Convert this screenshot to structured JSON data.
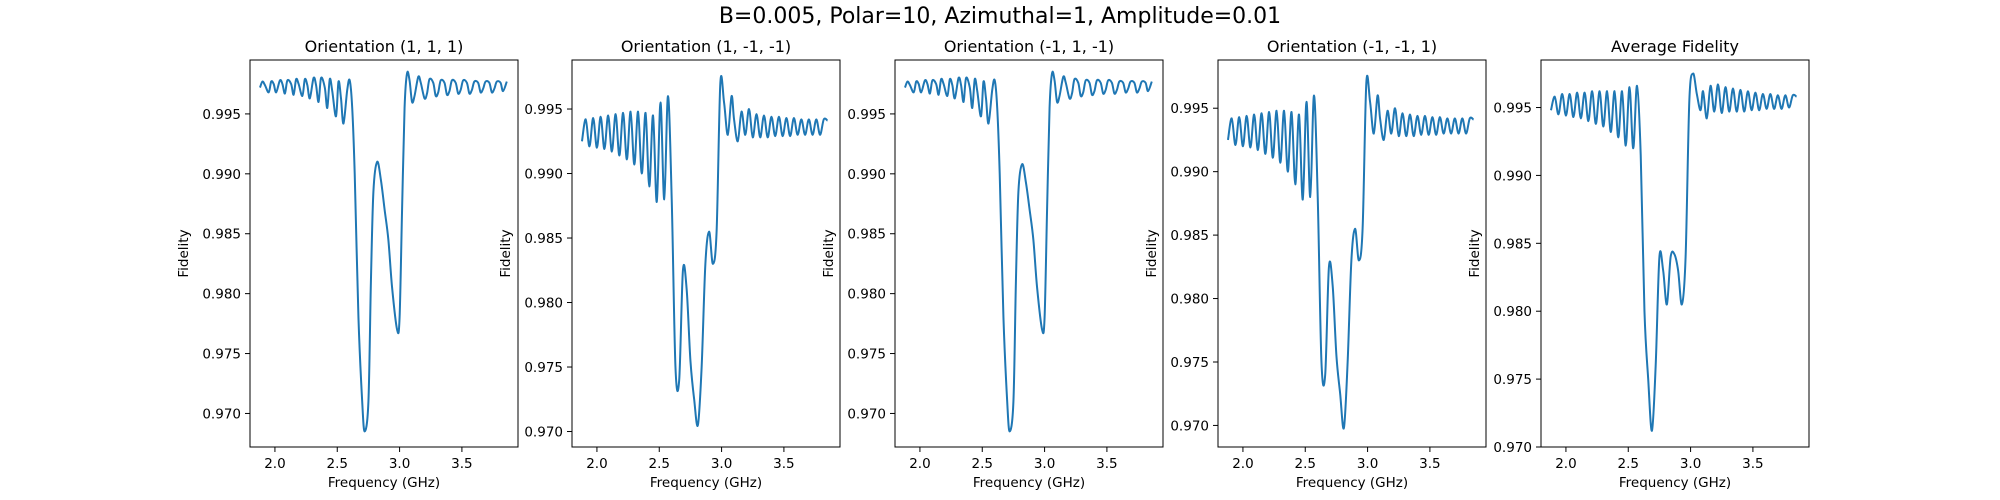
{
  "suptitle": "B=0.005, Polar=10, Azimuthal=1, Amplitude=0.01",
  "line_color": "#1f77b4",
  "chart_data": [
    {
      "type": "line",
      "title": "Orientation (1, 1, 1)",
      "xlabel": "Frequency (GHz)",
      "ylabel": "Fidelity",
      "xlim": [
        1.8,
        3.95
      ],
      "ylim": [
        0.9672,
        0.9995
      ],
      "xticks": [
        "2.0",
        "2.5",
        "3.0",
        "3.5"
      ],
      "yticks": [
        "0.995",
        "0.990",
        "0.985",
        "0.980",
        "0.975",
        "0.970"
      ],
      "series": [
        {
          "x": [
            1.88,
            1.9,
            1.92,
            1.95,
            1.97,
            1.99,
            2.01,
            2.04,
            2.06,
            2.08,
            2.1,
            2.13,
            2.15,
            2.17,
            2.19,
            2.22,
            2.24,
            2.26,
            2.28,
            2.31,
            2.33,
            2.35,
            2.37,
            2.4,
            2.42,
            2.44,
            2.46,
            2.49,
            2.51,
            2.53,
            2.55,
            2.58,
            2.6,
            2.62,
            2.64,
            2.67,
            2.7,
            2.72,
            2.75,
            2.77,
            2.79,
            2.82,
            2.85,
            2.88,
            2.91,
            2.94,
            2.98,
            3.0,
            3.02,
            3.04,
            3.06,
            3.08,
            3.1,
            3.12,
            3.15,
            3.17,
            3.2,
            3.22,
            3.24,
            3.27,
            3.29,
            3.31,
            3.33,
            3.36,
            3.38,
            3.4,
            3.42,
            3.45,
            3.47,
            3.49,
            3.51,
            3.54,
            3.56,
            3.58,
            3.6,
            3.63,
            3.65,
            3.67,
            3.69,
            3.72,
            3.74,
            3.76,
            3.78,
            3.81,
            3.83,
            3.86
          ],
          "y": [
            0.9972,
            0.9977,
            0.9974,
            0.9968,
            0.9977,
            0.9975,
            0.9968,
            0.9978,
            0.9975,
            0.9967,
            0.9978,
            0.9975,
            0.9966,
            0.9979,
            0.9975,
            0.9965,
            0.9979,
            0.9974,
            0.9963,
            0.998,
            0.9974,
            0.996,
            0.998,
            0.9972,
            0.9955,
            0.9979,
            0.9969,
            0.9948,
            0.9977,
            0.9963,
            0.9942,
            0.997,
            0.9978,
            0.9955,
            0.99,
            0.978,
            0.971,
            0.9685,
            0.971,
            0.981,
            0.9885,
            0.991,
            0.9895,
            0.987,
            0.9845,
            0.9805,
            0.977,
            0.978,
            0.987,
            0.9955,
            0.9984,
            0.9978,
            0.996,
            0.9965,
            0.9981,
            0.9976,
            0.9963,
            0.9967,
            0.9979,
            0.9976,
            0.9965,
            0.9968,
            0.9978,
            0.9976,
            0.9966,
            0.9969,
            0.9978,
            0.9976,
            0.9967,
            0.997,
            0.9978,
            0.9976,
            0.9967,
            0.997,
            0.9977,
            0.9976,
            0.9968,
            0.9971,
            0.9977,
            0.9976,
            0.9968,
            0.9971,
            0.9977,
            0.9976,
            0.9969,
            0.9977
          ]
        }
      ]
    },
    {
      "type": "line",
      "title": "Orientation (1, -1, -1)",
      "xlabel": "Frequency (GHz)",
      "ylabel": "Fidelity",
      "xlim": [
        1.8,
        3.95
      ],
      "ylim": [
        0.9688,
        0.9988
      ],
      "xticks": [
        "2.0",
        "2.5",
        "3.0",
        "3.5"
      ],
      "yticks": [
        "0.995",
        "0.990",
        "0.985",
        "0.980",
        "0.975",
        "0.970"
      ],
      "series": [
        {
          "x": [
            1.88,
            1.91,
            1.94,
            1.97,
            2.0,
            2.03,
            2.06,
            2.09,
            2.12,
            2.15,
            2.18,
            2.21,
            2.24,
            2.27,
            2.3,
            2.33,
            2.36,
            2.39,
            2.42,
            2.45,
            2.48,
            2.51,
            2.54,
            2.57,
            2.6,
            2.63,
            2.66,
            2.69,
            2.72,
            2.75,
            2.78,
            2.81,
            2.84,
            2.87,
            2.9,
            2.93,
            2.96,
            2.99,
            3.02,
            3.05,
            3.08,
            3.1,
            3.13,
            3.16,
            3.19,
            3.22,
            3.25,
            3.28,
            3.31,
            3.34,
            3.37,
            3.4,
            3.43,
            3.46,
            3.49,
            3.52,
            3.55,
            3.58,
            3.61,
            3.64,
            3.67,
            3.7,
            3.73,
            3.76,
            3.79,
            3.82,
            3.85
          ],
          "y": [
            0.9925,
            0.9942,
            0.9921,
            0.9943,
            0.992,
            0.9944,
            0.9919,
            0.9945,
            0.9917,
            0.9946,
            0.9914,
            0.9947,
            0.9911,
            0.9948,
            0.9907,
            0.9948,
            0.99,
            0.9947,
            0.989,
            0.9945,
            0.9878,
            0.9955,
            0.988,
            0.996,
            0.988,
            0.975,
            0.974,
            0.9825,
            0.981,
            0.9755,
            0.9725,
            0.9705,
            0.975,
            0.983,
            0.9855,
            0.983,
            0.9855,
            0.997,
            0.9955,
            0.993,
            0.996,
            0.9942,
            0.9925,
            0.9948,
            0.993,
            0.995,
            0.9928,
            0.9946,
            0.9928,
            0.9945,
            0.9928,
            0.9944,
            0.9929,
            0.9944,
            0.9929,
            0.9943,
            0.9929,
            0.9943,
            0.993,
            0.9942,
            0.993,
            0.9942,
            0.993,
            0.9942,
            0.993,
            0.9942,
            0.9941
          ]
        }
      ]
    },
    {
      "type": "line",
      "title": "Orientation (-1, 1, -1)",
      "xlabel": "Frequency (GHz)",
      "ylabel": "Fidelity",
      "xlim": [
        1.8,
        3.95
      ],
      "ylim": [
        0.9672,
        0.9995
      ],
      "xticks": [
        "2.0",
        "2.5",
        "3.0",
        "3.5"
      ],
      "yticks": [
        "0.995",
        "0.990",
        "0.985",
        "0.980",
        "0.975",
        "0.970"
      ],
      "series": [
        {
          "x": [
            1.88,
            1.9,
            1.92,
            1.95,
            1.97,
            1.99,
            2.01,
            2.04,
            2.06,
            2.08,
            2.1,
            2.13,
            2.15,
            2.17,
            2.19,
            2.22,
            2.24,
            2.26,
            2.28,
            2.31,
            2.33,
            2.35,
            2.37,
            2.4,
            2.42,
            2.44,
            2.46,
            2.49,
            2.51,
            2.53,
            2.55,
            2.58,
            2.6,
            2.62,
            2.64,
            2.67,
            2.7,
            2.72,
            2.75,
            2.77,
            2.79,
            2.82,
            2.85,
            2.88,
            2.91,
            2.94,
            2.98,
            3.0,
            3.02,
            3.04,
            3.06,
            3.08,
            3.1,
            3.12,
            3.15,
            3.17,
            3.2,
            3.22,
            3.24,
            3.27,
            3.29,
            3.31,
            3.33,
            3.36,
            3.38,
            3.4,
            3.42,
            3.45,
            3.47,
            3.49,
            3.51,
            3.54,
            3.56,
            3.58,
            3.6,
            3.63,
            3.65,
            3.67,
            3.69,
            3.72,
            3.74,
            3.76,
            3.78,
            3.81,
            3.83,
            3.86
          ],
          "y": [
            0.9972,
            0.9977,
            0.9974,
            0.9968,
            0.9977,
            0.9975,
            0.9968,
            0.9978,
            0.9975,
            0.9967,
            0.9978,
            0.9975,
            0.9966,
            0.9979,
            0.9975,
            0.9965,
            0.9979,
            0.9974,
            0.9963,
            0.998,
            0.9974,
            0.996,
            0.998,
            0.9972,
            0.9955,
            0.9979,
            0.9969,
            0.9948,
            0.9977,
            0.9963,
            0.9942,
            0.997,
            0.9978,
            0.9955,
            0.99,
            0.978,
            0.971,
            0.9685,
            0.971,
            0.981,
            0.9885,
            0.9908,
            0.9893,
            0.987,
            0.9845,
            0.9805,
            0.977,
            0.978,
            0.987,
            0.9955,
            0.9984,
            0.9978,
            0.996,
            0.9965,
            0.9981,
            0.9976,
            0.9963,
            0.9967,
            0.9979,
            0.9976,
            0.9965,
            0.9968,
            0.9978,
            0.9976,
            0.9966,
            0.9969,
            0.9978,
            0.9976,
            0.9967,
            0.997,
            0.9978,
            0.9976,
            0.9967,
            0.997,
            0.9977,
            0.9976,
            0.9968,
            0.9971,
            0.9977,
            0.9976,
            0.9968,
            0.9971,
            0.9977,
            0.9976,
            0.9969,
            0.9977
          ]
        }
      ]
    },
    {
      "type": "line",
      "title": "Orientation (-1, -1, 1)",
      "xlabel": "Frequency (GHz)",
      "ylabel": "Fidelity",
      "xlim": [
        1.8,
        3.95
      ],
      "ylim": [
        0.9683,
        0.9988
      ],
      "xticks": [
        "2.0",
        "2.5",
        "3.0",
        "3.5"
      ],
      "yticks": [
        "0.995",
        "0.990",
        "0.985",
        "0.980",
        "0.975",
        "0.970"
      ],
      "series": [
        {
          "x": [
            1.88,
            1.91,
            1.94,
            1.97,
            2.0,
            2.03,
            2.06,
            2.09,
            2.12,
            2.15,
            2.18,
            2.21,
            2.24,
            2.27,
            2.3,
            2.33,
            2.36,
            2.39,
            2.42,
            2.45,
            2.48,
            2.51,
            2.54,
            2.57,
            2.6,
            2.63,
            2.66,
            2.69,
            2.72,
            2.75,
            2.78,
            2.81,
            2.84,
            2.87,
            2.9,
            2.93,
            2.96,
            2.99,
            3.02,
            3.05,
            3.08,
            3.1,
            3.13,
            3.16,
            3.19,
            3.22,
            3.25,
            3.28,
            3.31,
            3.34,
            3.37,
            3.4,
            3.43,
            3.46,
            3.49,
            3.52,
            3.55,
            3.58,
            3.61,
            3.64,
            3.67,
            3.7,
            3.73,
            3.76,
            3.79,
            3.82,
            3.85
          ],
          "y": [
            0.9925,
            0.9942,
            0.9921,
            0.9943,
            0.992,
            0.9944,
            0.9919,
            0.9945,
            0.9917,
            0.9946,
            0.9914,
            0.9947,
            0.9911,
            0.9948,
            0.9907,
            0.9948,
            0.99,
            0.9947,
            0.989,
            0.9945,
            0.9878,
            0.9955,
            0.988,
            0.996,
            0.988,
            0.975,
            0.974,
            0.9825,
            0.981,
            0.9755,
            0.9725,
            0.9698,
            0.975,
            0.983,
            0.9855,
            0.983,
            0.9855,
            0.997,
            0.9955,
            0.993,
            0.996,
            0.9942,
            0.9925,
            0.9948,
            0.993,
            0.995,
            0.9928,
            0.9946,
            0.9928,
            0.9945,
            0.9928,
            0.9944,
            0.9929,
            0.9944,
            0.9929,
            0.9943,
            0.9929,
            0.9943,
            0.993,
            0.9942,
            0.993,
            0.9942,
            0.993,
            0.9942,
            0.993,
            0.9942,
            0.9941
          ]
        }
      ]
    },
    {
      "type": "line",
      "title": "Average Fidelity",
      "xlabel": "Frequency (GHz)",
      "ylabel": "Fidelity",
      "xlim": [
        1.8,
        3.95
      ],
      "ylim": [
        0.97,
        0.9985
      ],
      "xticks": [
        "2.0",
        "2.5",
        "3.0",
        "3.5"
      ],
      "yticks": [
        "0.995",
        "0.990",
        "0.985",
        "0.980",
        "0.975",
        "0.970"
      ],
      "series": [
        {
          "x": [
            1.88,
            1.91,
            1.94,
            1.97,
            2.0,
            2.03,
            2.06,
            2.09,
            2.12,
            2.15,
            2.18,
            2.21,
            2.24,
            2.27,
            2.3,
            2.33,
            2.36,
            2.39,
            2.42,
            2.45,
            2.48,
            2.51,
            2.54,
            2.57,
            2.6,
            2.63,
            2.66,
            2.69,
            2.72,
            2.75,
            2.78,
            2.81,
            2.84,
            2.87,
            2.9,
            2.93,
            2.96,
            2.99,
            3.02,
            3.05,
            3.08,
            3.1,
            3.13,
            3.16,
            3.19,
            3.22,
            3.25,
            3.28,
            3.31,
            3.34,
            3.37,
            3.4,
            3.43,
            3.46,
            3.49,
            3.52,
            3.55,
            3.58,
            3.61,
            3.64,
            3.67,
            3.7,
            3.73,
            3.76,
            3.79,
            3.82,
            3.85
          ],
          "y": [
            0.9948,
            0.9958,
            0.9945,
            0.996,
            0.9944,
            0.996,
            0.9943,
            0.9961,
            0.9942,
            0.9961,
            0.994,
            0.9962,
            0.9938,
            0.9962,
            0.9936,
            0.9962,
            0.9932,
            0.9962,
            0.9928,
            0.9962,
            0.9922,
            0.9965,
            0.992,
            0.9966,
            0.9915,
            0.98,
            0.975,
            0.9712,
            0.976,
            0.984,
            0.983,
            0.9805,
            0.984,
            0.9842,
            0.983,
            0.9805,
            0.984,
            0.9955,
            0.9975,
            0.996,
            0.9948,
            0.9962,
            0.9942,
            0.9966,
            0.9947,
            0.9967,
            0.9946,
            0.9965,
            0.9947,
            0.9964,
            0.9947,
            0.9963,
            0.9947,
            0.9962,
            0.9948,
            0.9961,
            0.9948,
            0.996,
            0.9949,
            0.996,
            0.9949,
            0.9959,
            0.9949,
            0.9959,
            0.995,
            0.9959,
            0.9958
          ]
        }
      ]
    }
  ]
}
